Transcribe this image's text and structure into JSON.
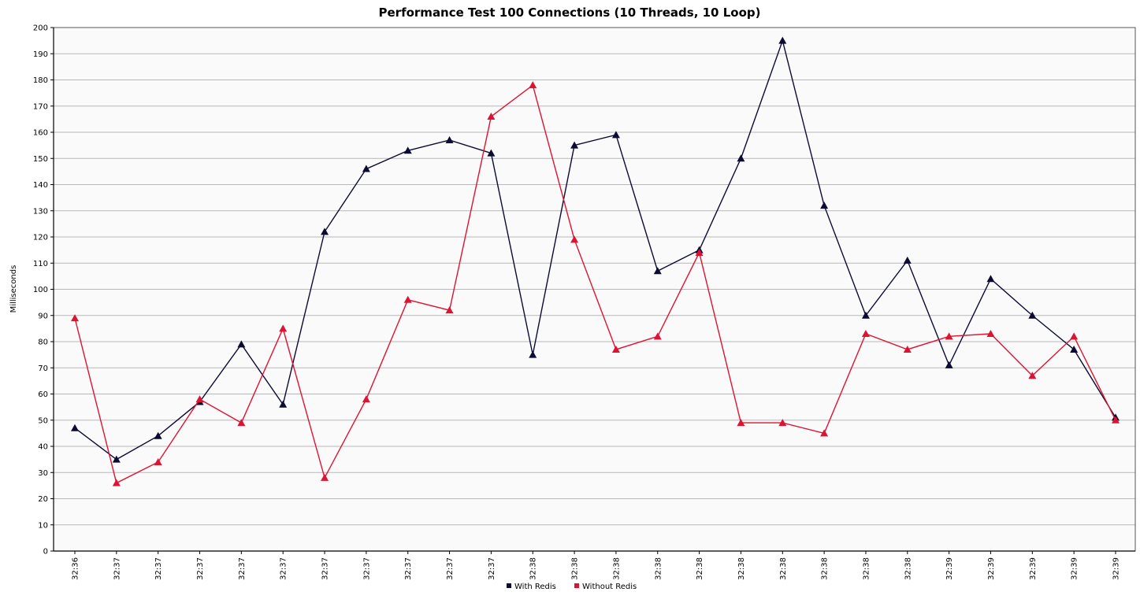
{
  "chart_data": {
    "type": "line",
    "title": "Performance Test 100 Connections (10 Threads, 10 Loop)",
    "xlabel": "",
    "ylabel": "Milliseconds",
    "ylim": [
      0,
      200
    ],
    "yticks": [
      0,
      10,
      20,
      30,
      40,
      50,
      60,
      70,
      80,
      90,
      100,
      110,
      120,
      130,
      140,
      150,
      160,
      170,
      180,
      190,
      200
    ],
    "grid": true,
    "legend_position": "bottom",
    "categories": [
      "32:36",
      "32:37",
      "32:37",
      "32:37",
      "32:37",
      "32:37",
      "32:37",
      "32:37",
      "32:37",
      "32:37",
      "32:37",
      "32:38",
      "32:38",
      "32:38",
      "32:38",
      "32:38",
      "32:38",
      "32:38",
      "32:38",
      "32:38",
      "32:38",
      "32:39",
      "32:39",
      "32:39",
      "32:39",
      "32:39"
    ],
    "series": [
      {
        "name": "With Redis",
        "color": "#0b0b33",
        "marker": "triangle",
        "values": [
          47,
          35,
          44,
          57,
          79,
          56,
          122,
          146,
          153,
          157,
          152,
          75,
          155,
          159,
          107,
          115,
          150,
          195,
          132,
          90,
          111,
          71,
          104,
          90,
          77,
          51
        ]
      },
      {
        "name": "Without Redis",
        "color": "#dc1432",
        "marker": "triangle",
        "values": [
          89,
          26,
          34,
          58,
          49,
          85,
          28,
          58,
          96,
          92,
          166,
          178,
          119,
          77,
          82,
          114,
          49,
          49,
          45,
          83,
          77,
          82,
          83,
          67,
          82,
          50
        ]
      }
    ]
  }
}
